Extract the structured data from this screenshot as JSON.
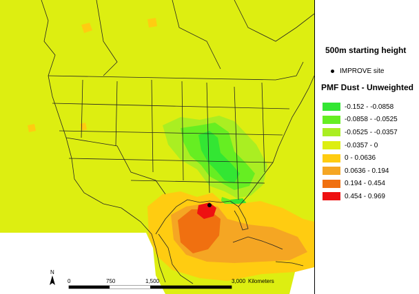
{
  "legend": {
    "title": "500m starting height",
    "site_marker": {
      "label": "IMPROVE site",
      "symbol": "black-dot"
    },
    "heading": "PMF Dust - Unweighted",
    "classes": [
      {
        "label": "-0.152 - -0.0858",
        "color": "#33e633"
      },
      {
        "label": "-0.0858 - -0.0525",
        "color": "#66ee22"
      },
      {
        "label": "-0.0525 - -0.0357",
        "color": "#aaee22"
      },
      {
        "label": "-0.0357 - 0",
        "color": "#ddee11"
      },
      {
        "label": "0 - 0.0636",
        "color": "#ffcc11"
      },
      {
        "label": "0.0636 - 0.194",
        "color": "#f5a623"
      },
      {
        "label": "0.194 - 0.454",
        "color": "#f07010"
      },
      {
        "label": "0.454 - 0.969",
        "color": "#ee1111"
      }
    ]
  },
  "scale_bar": {
    "ticks": [
      "0",
      "750",
      "1,500",
      "3,000"
    ],
    "unit": "Kilometers"
  },
  "north_arrow": {
    "label": "N"
  },
  "map_colors": {
    "background_field": "#ddee11",
    "no_data": "#ffffff",
    "boundary": "#222222"
  }
}
